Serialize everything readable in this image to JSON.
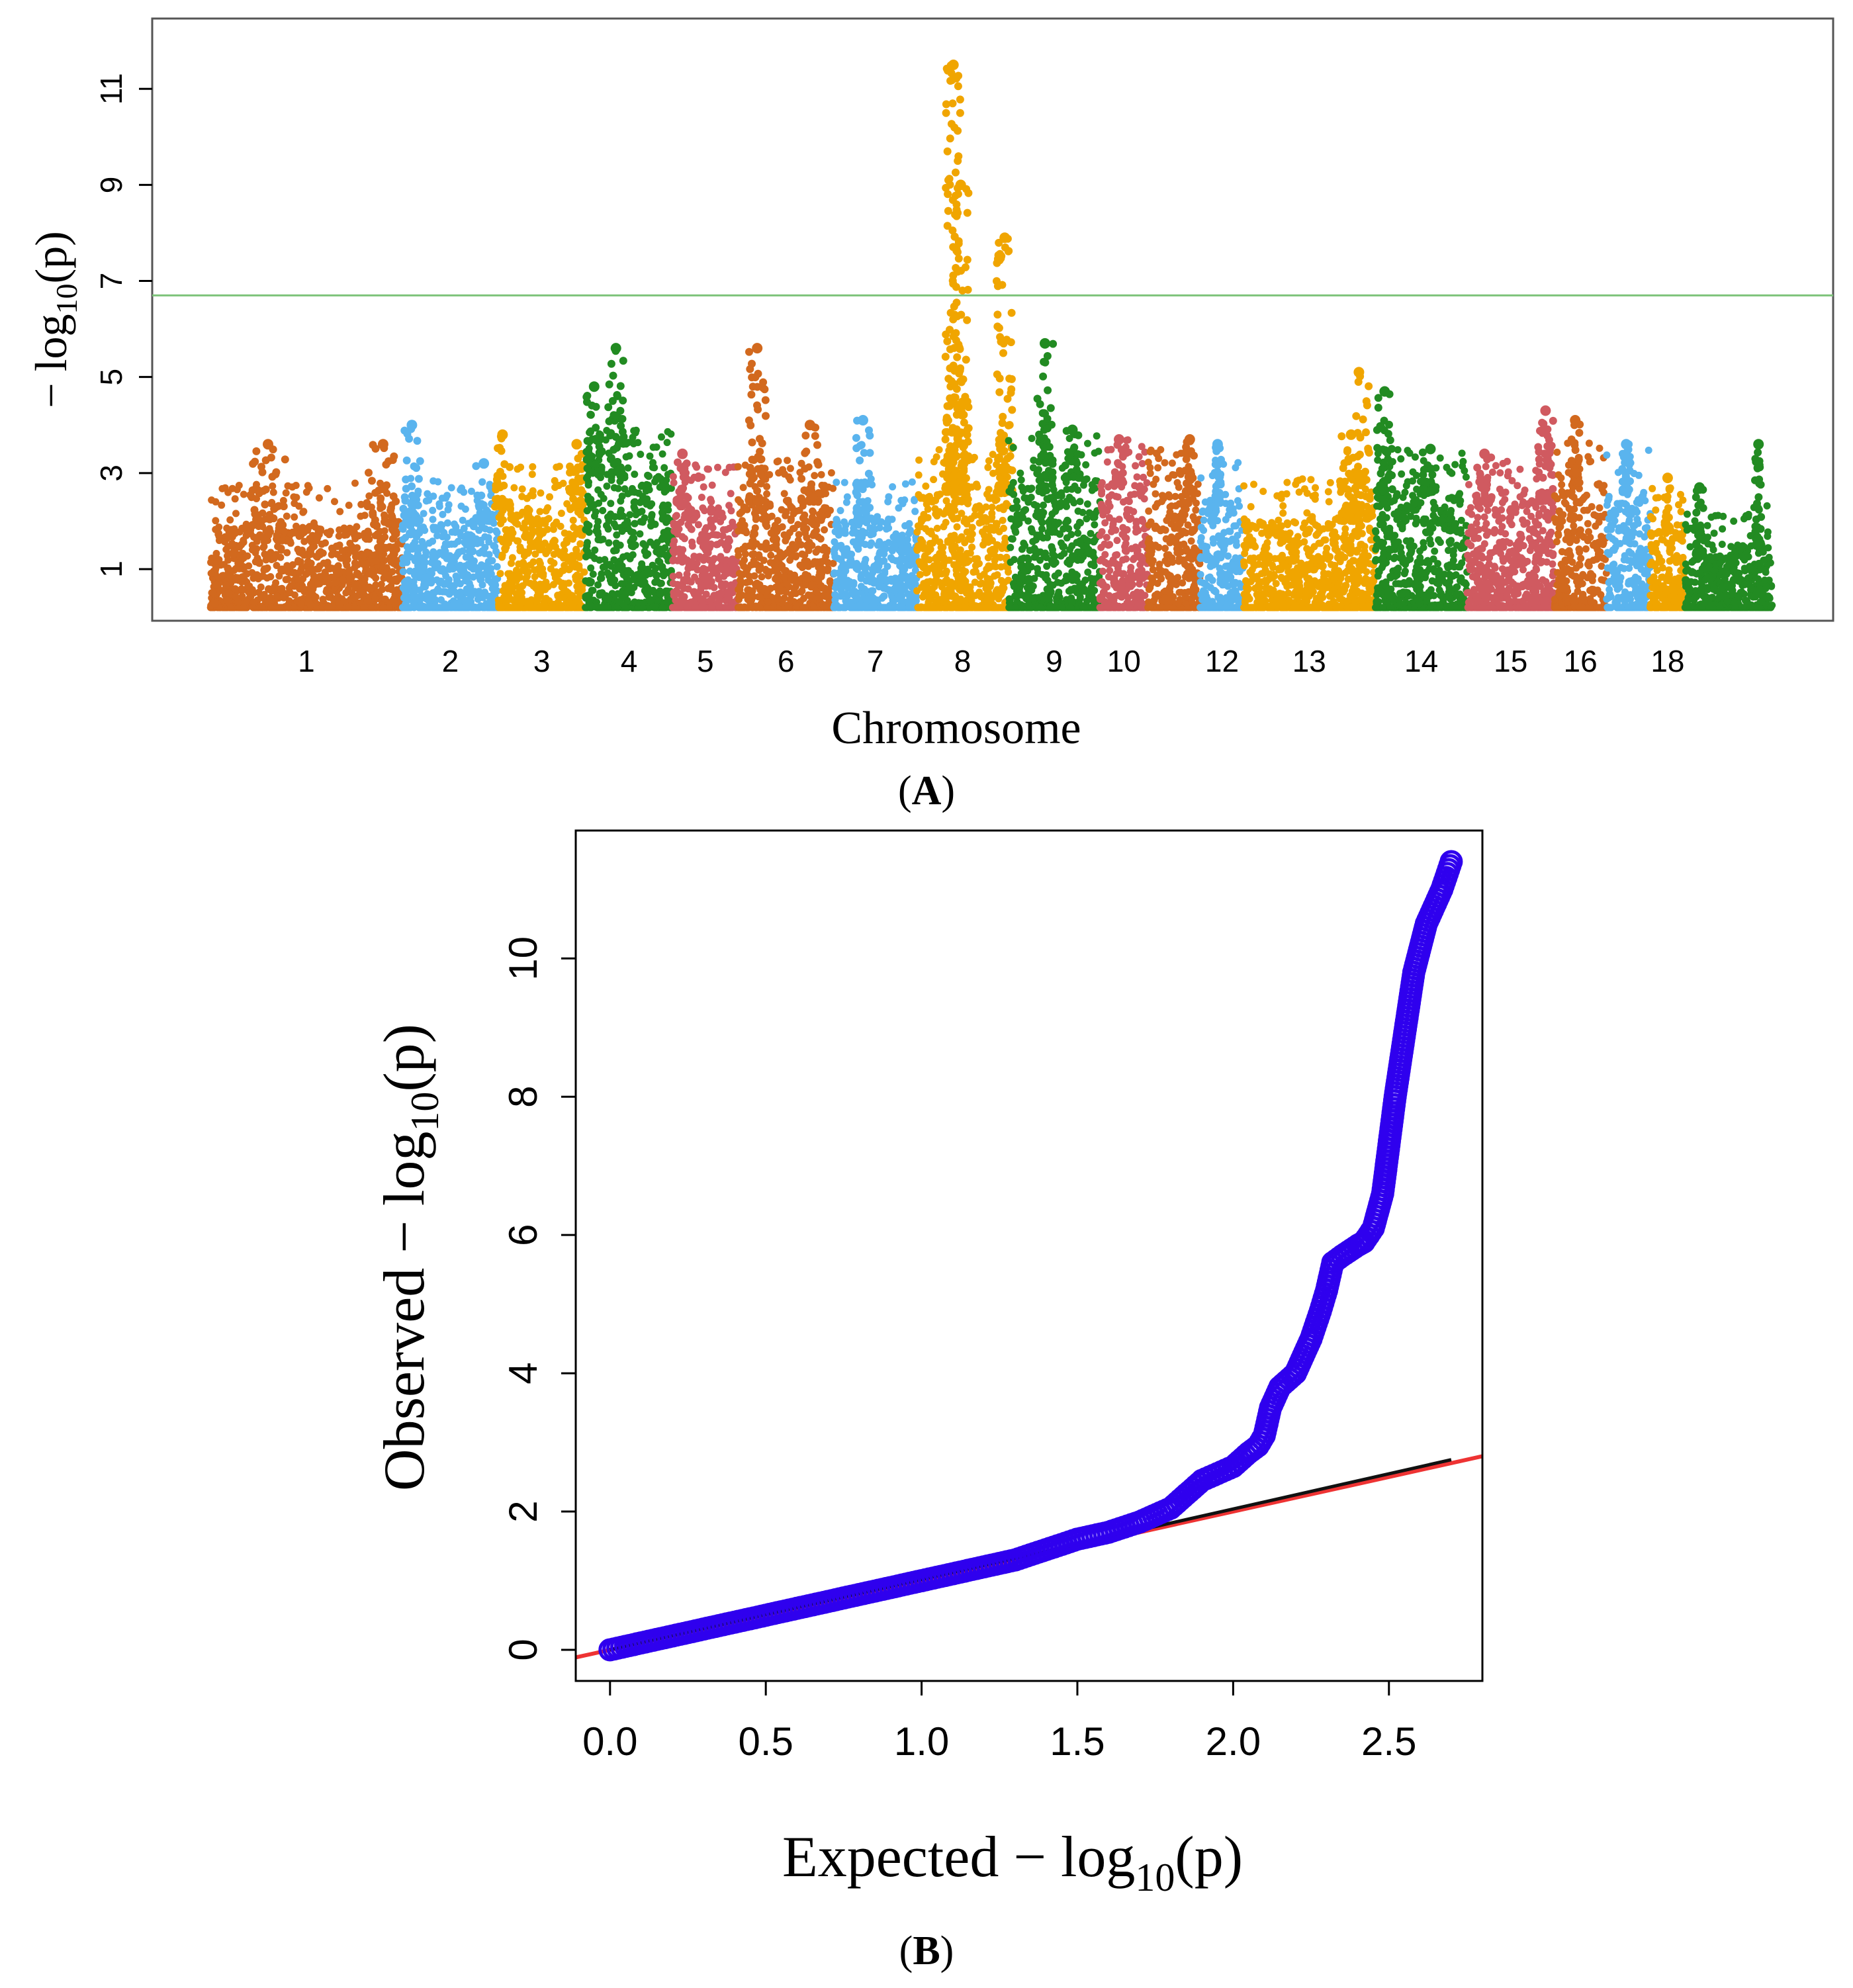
{
  "panels": {
    "A": {
      "label_open": "(",
      "label_letter": "A",
      "label_close": ")"
    },
    "B": {
      "label_open": "(",
      "label_letter": "B",
      "label_close": ")"
    }
  },
  "chart_data": [
    {
      "type": "scatter",
      "subtype": "manhattan",
      "xlabel": "Chromosome",
      "ylabel": "− log10(p)",
      "ylabel_parts": {
        "pre": "− log",
        "sub": "10",
        "post": "(p)"
      },
      "ylim": [
        0,
        12
      ],
      "yticks": [
        "1",
        "3",
        "5",
        "7",
        "9",
        "11"
      ],
      "threshold": 6.7,
      "threshold_color": "#7dc37a",
      "palette": [
        "#d2691e",
        "#5ab4ee",
        "#f0a500",
        "#228b22",
        "#d05a60"
      ],
      "chromosomes": [
        {
          "id": "1",
          "label": "1",
          "span": 2.2,
          "color": "#d2691e",
          "base": 1.9,
          "peaks": [
            {
              "pos": 0.3,
              "h": 3.6
            },
            {
              "pos": 0.9,
              "h": 3.6
            }
          ]
        },
        {
          "id": "2",
          "label": "2",
          "span": 1.1,
          "color": "#5ab4ee",
          "base": 2.0,
          "peaks": [
            {
              "pos": 0.1,
              "h": 4.0
            },
            {
              "pos": 0.85,
              "h": 3.2
            }
          ]
        },
        {
          "id": "3",
          "label": "3",
          "span": 1.0,
          "color": "#f0a500",
          "base": 2.3,
          "peaks": [
            {
              "pos": 0.05,
              "h": 3.8
            },
            {
              "pos": 0.9,
              "h": 3.6
            }
          ]
        },
        {
          "id": "4",
          "label": "4",
          "span": 1.0,
          "color": "#228b22",
          "base": 3.0,
          "peaks": [
            {
              "pos": 0.35,
              "h": 5.6
            },
            {
              "pos": 0.1,
              "h": 4.8
            }
          ]
        },
        {
          "id": "5",
          "label": "5",
          "span": 0.75,
          "color": "#d05a60",
          "base": 2.3,
          "peaks": [
            {
              "pos": 0.15,
              "h": 3.4
            }
          ]
        },
        {
          "id": "6",
          "label": "6",
          "span": 1.1,
          "color": "#d2691e",
          "base": 2.4,
          "peaks": [
            {
              "pos": 0.2,
              "h": 5.6
            },
            {
              "pos": 0.75,
              "h": 4.0
            }
          ]
        },
        {
          "id": "7",
          "label": "7",
          "span": 0.95,
          "color": "#5ab4ee",
          "base": 2.0,
          "peaks": [
            {
              "pos": 0.35,
              "h": 4.1
            }
          ]
        },
        {
          "id": "8",
          "label": "8",
          "span": 1.05,
          "color": "#f0a500",
          "base": 2.6,
          "peaks": [
            {
              "pos": 0.4,
              "h": 11.5
            },
            {
              "pos": 0.48,
              "h": 9.0
            },
            {
              "pos": 0.96,
              "h": 7.9
            }
          ]
        },
        {
          "id": "9",
          "label": "9",
          "span": 1.05,
          "color": "#228b22",
          "base": 2.9,
          "peaks": [
            {
              "pos": 0.4,
              "h": 5.7
            },
            {
              "pos": 0.7,
              "h": 3.9
            }
          ]
        },
        {
          "id": "10",
          "label": "10",
          "span": 0.55,
          "color": "#d05a60",
          "base": 2.8,
          "peaks": [
            {
              "pos": 0.4,
              "h": 3.7
            }
          ]
        },
        {
          "id": "11",
          "label": "",
          "span": 0.6,
          "color": "#d2691e",
          "base": 2.6,
          "peaks": [
            {
              "pos": 0.8,
              "h": 3.7
            }
          ]
        },
        {
          "id": "12",
          "label": "12",
          "span": 0.5,
          "color": "#5ab4ee",
          "base": 2.4,
          "peaks": [
            {
              "pos": 0.4,
              "h": 3.6
            }
          ]
        },
        {
          "id": "13",
          "label": "13",
          "span": 1.5,
          "color": "#f0a500",
          "base": 2.0,
          "peaks": [
            {
              "pos": 0.88,
              "h": 5.1
            },
            {
              "pos": 0.82,
              "h": 3.8
            }
          ]
        },
        {
          "id": "13b",
          "label": "",
          "span": 0.01,
          "color": "#f0a500",
          "base": 2.0,
          "peaks": []
        },
        {
          "id": "14",
          "label": "14",
          "span": 1.05,
          "color": "#228b22",
          "base": 2.6,
          "peaks": [
            {
              "pos": 0.1,
              "h": 4.7
            },
            {
              "pos": 0.6,
              "h": 3.5
            }
          ]
        },
        {
          "id": "15",
          "label": "15",
          "span": 1.0,
          "color": "#d05a60",
          "base": 2.4,
          "peaks": [
            {
              "pos": 0.2,
              "h": 3.4
            },
            {
              "pos": 0.9,
              "h": 4.3
            }
          ]
        },
        {
          "id": "16",
          "label": "16",
          "span": 0.6,
          "color": "#d2691e",
          "base": 2.8,
          "peaks": [
            {
              "pos": 0.4,
              "h": 4.1
            }
          ]
        },
        {
          "id": "17",
          "label": "",
          "span": 0.5,
          "color": "#5ab4ee",
          "base": 2.6,
          "peaks": [
            {
              "pos": 0.45,
              "h": 3.6
            }
          ]
        },
        {
          "id": "18",
          "label": "18",
          "span": 0.4,
          "color": "#f0a500",
          "base": 1.8,
          "peaks": [
            {
              "pos": 0.5,
              "h": 2.9
            }
          ]
        },
        {
          "id": "19",
          "label": "",
          "span": 0.55,
          "color": "#228b22",
          "base": 1.3,
          "peaks": [
            {
              "pos": 0.3,
              "h": 2.7
            }
          ]
        },
        {
          "id": "20",
          "label": "",
          "span": 0.45,
          "color": "#228b22",
          "base": 1.5,
          "peaks": [
            {
              "pos": 0.65,
              "h": 3.6
            }
          ]
        }
      ]
    },
    {
      "type": "scatter",
      "subtype": "qq",
      "xlabel": "Expected  − log10(p)",
      "xlabel_parts": {
        "pre": "Expected  − log",
        "sub": "10",
        "post": "(p)"
      },
      "ylabel": "Observed  − log10(p)",
      "ylabel_parts": {
        "pre": "Observed  − log",
        "sub": "10",
        "post": "(p)"
      },
      "xlim": [
        -0.11,
        2.8
      ],
      "ylim": [
        -0.45,
        11.85
      ],
      "xticks": [
        "0.0",
        "0.5",
        "1.0",
        "1.5",
        "2.0",
        "2.5"
      ],
      "yticks": [
        "0",
        "2",
        "4",
        "6",
        "8",
        "10"
      ],
      "point_color": "#2f00ee",
      "reference_line": {
        "color": "#ee3333",
        "slope": 1.0,
        "intercept": 0.0
      },
      "fit_line": {
        "color": "#111111",
        "x": [
          0.0,
          2.7
        ],
        "y": [
          0.0,
          2.75
        ]
      },
      "points_x": [
        0.0,
        0.1,
        0.2,
        0.3,
        0.4,
        0.5,
        0.6,
        0.7,
        0.8,
        0.9,
        1.0,
        1.1,
        1.2,
        1.3,
        1.4,
        1.5,
        1.6,
        1.7,
        1.8,
        1.85,
        1.9,
        1.95,
        2.0,
        2.05,
        2.08,
        2.1,
        2.12,
        2.15,
        2.2,
        2.25,
        2.28,
        2.3,
        2.32,
        2.35,
        2.4,
        2.42,
        2.45,
        2.48,
        2.5,
        2.52,
        2.54,
        2.56,
        2.58,
        2.62,
        2.65,
        2.67,
        2.7
      ],
      "points_y": [
        0.0,
        0.1,
        0.2,
        0.3,
        0.4,
        0.5,
        0.6,
        0.7,
        0.8,
        0.9,
        1.0,
        1.1,
        1.2,
        1.3,
        1.45,
        1.6,
        1.7,
        1.85,
        2.05,
        2.25,
        2.45,
        2.55,
        2.65,
        2.85,
        2.95,
        3.1,
        3.5,
        3.8,
        4.0,
        4.5,
        4.9,
        5.2,
        5.6,
        5.7,
        5.85,
        5.9,
        6.1,
        6.6,
        7.3,
        8.0,
        8.6,
        9.2,
        9.8,
        10.5,
        10.8,
        11.0,
        11.4
      ]
    }
  ]
}
